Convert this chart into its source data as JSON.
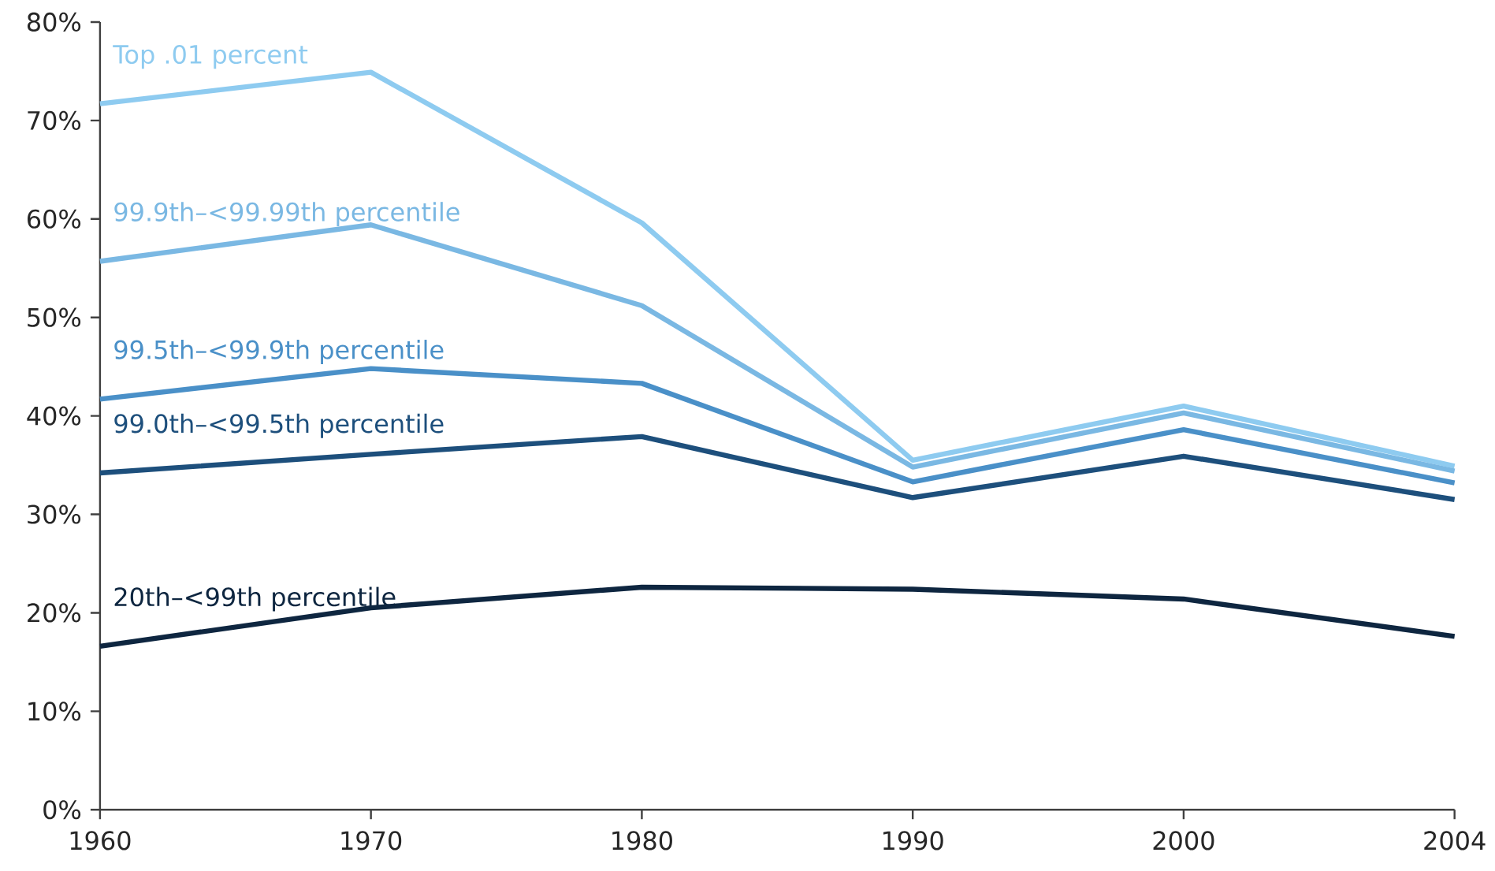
{
  "chart_data": {
    "type": "line",
    "categories": [
      "1960",
      "1970",
      "1980",
      "1990",
      "2000",
      "2004"
    ],
    "ylim": [
      0,
      80
    ],
    "yticks": [
      {
        "value": 0,
        "label": "0%"
      },
      {
        "value": 10,
        "label": "10%"
      },
      {
        "value": 20,
        "label": "20%"
      },
      {
        "value": 30,
        "label": "30%"
      },
      {
        "value": 40,
        "label": "40%"
      },
      {
        "value": 50,
        "label": "50%"
      },
      {
        "value": 60,
        "label": "60%"
      },
      {
        "value": 70,
        "label": "70%"
      },
      {
        "value": 80,
        "label": "80%"
      }
    ],
    "grid": false,
    "legend": false,
    "marker": "none",
    "line_style": "solid",
    "series": [
      {
        "name": "Top .01 percent",
        "color": "#8ecbf0",
        "values": [
          71.7,
          74.9,
          59.6,
          35.5,
          41.0,
          34.9
        ]
      },
      {
        "name": "99.9th–<99.99th percentile",
        "color": "#7ab8e3",
        "values": [
          55.7,
          59.4,
          51.2,
          34.8,
          40.3,
          34.4
        ]
      },
      {
        "name": "99.5th–<99.9th percentile",
        "color": "#4a90c8",
        "values": [
          41.7,
          44.8,
          43.3,
          33.3,
          38.6,
          33.2
        ]
      },
      {
        "name": "99.0th–<99.5th percentile",
        "color": "#1d4f7c",
        "values": [
          34.2,
          36.1,
          37.9,
          31.7,
          35.9,
          31.5
        ]
      },
      {
        "name": "20th–<99th percentile",
        "color": "#0e2640",
        "values": [
          16.6,
          20.5,
          22.6,
          22.4,
          21.4,
          17.6
        ]
      }
    ]
  }
}
